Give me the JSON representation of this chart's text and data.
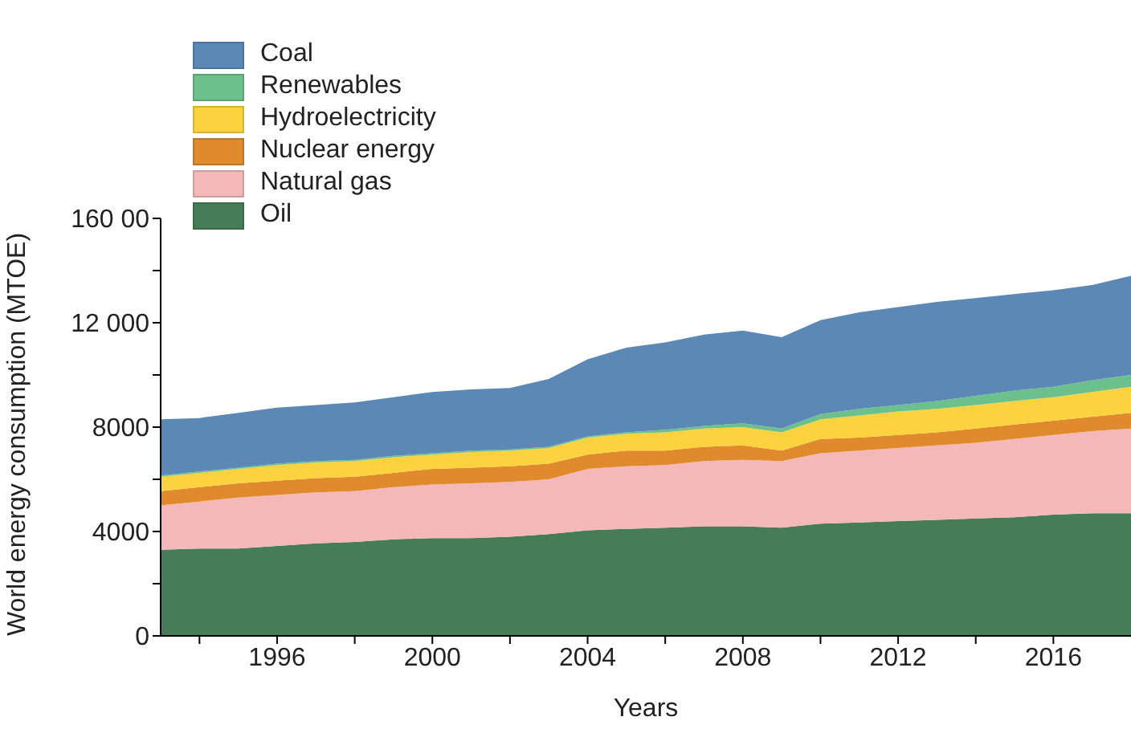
{
  "chart_data": {
    "type": "area",
    "stacked": true,
    "xlabel": "Years",
    "ylabel": "World energy consumption (MTOE)",
    "x": [
      1993,
      1994,
      1995,
      1996,
      1997,
      1998,
      1999,
      2000,
      2001,
      2002,
      2003,
      2004,
      2005,
      2006,
      2007,
      2008,
      2009,
      2010,
      2011,
      2012,
      2013,
      2014,
      2015,
      2016,
      2017,
      2018
    ],
    "series": [
      {
        "name": "Oil",
        "color": "#477c58",
        "values": [
          3300,
          3350,
          3350,
          3450,
          3550,
          3600,
          3700,
          3750,
          3750,
          3800,
          3900,
          4050,
          4100,
          4150,
          4200,
          4200,
          4150,
          4300,
          4350,
          4400,
          4450,
          4500,
          4550,
          4650,
          4700,
          4700
        ]
      },
      {
        "name": "Natural gas",
        "color": "#f4b8b8",
        "values": [
          1700,
          1800,
          1950,
          1950,
          1950,
          1950,
          2000,
          2050,
          2100,
          2100,
          2100,
          2350,
          2400,
          2400,
          2500,
          2550,
          2550,
          2700,
          2750,
          2800,
          2850,
          2900,
          3000,
          3050,
          3150,
          3250
        ]
      },
      {
        "name": "Nuclear energy",
        "color": "#e08a2e",
        "values": [
          550,
          550,
          550,
          550,
          550,
          550,
          550,
          600,
          600,
          600,
          600,
          550,
          600,
          550,
          550,
          550,
          400,
          550,
          500,
          500,
          500,
          550,
          550,
          550,
          550,
          600
        ]
      },
      {
        "name": "Hydroelectricity",
        "color": "#fcd23f",
        "values": [
          550,
          550,
          550,
          600,
          600,
          600,
          600,
          550,
          600,
          600,
          600,
          650,
          650,
          700,
          700,
          700,
          700,
          750,
          850,
          900,
          900,
          900,
          900,
          900,
          950,
          1000
        ]
      },
      {
        "name": "Renewables",
        "color": "#6cc08b",
        "values": [
          50,
          50,
          50,
          50,
          50,
          50,
          50,
          50,
          50,
          50,
          50,
          50,
          50,
          100,
          100,
          150,
          150,
          200,
          250,
          250,
          300,
          350,
          400,
          400,
          450,
          450
        ]
      },
      {
        "name": "Coal",
        "color": "#5b88b5",
        "values": [
          2150,
          2050,
          2100,
          2150,
          2150,
          2200,
          2250,
          2350,
          2350,
          2350,
          2600,
          2950,
          3250,
          3350,
          3500,
          3550,
          3500,
          3600,
          3700,
          3750,
          3800,
          3750,
          3700,
          3700,
          3650,
          3800
        ]
      }
    ],
    "xlim": [
      1993,
      2018
    ],
    "xticks": [
      {
        "value": 1994,
        "label": null
      },
      1996,
      {
        "value": 1998,
        "label": null
      },
      2000,
      {
        "value": 2002,
        "label": null
      },
      2004,
      {
        "value": 2006,
        "label": null
      },
      2008,
      {
        "value": 2010,
        "label": null
      },
      2012,
      {
        "value": 2014,
        "label": null
      },
      2016
    ],
    "ylim": [
      0,
      16000
    ],
    "yticks": [
      0,
      {
        "value": 2000,
        "label": null
      },
      4000,
      {
        "value": 6000,
        "label": null
      },
      8000,
      {
        "value": 10000,
        "label": null
      },
      {
        "value": 12000,
        "label": "12 000"
      },
      {
        "value": 14000,
        "label": null
      },
      {
        "value": 16000,
        "label": "160 00"
      }
    ],
    "grid": false,
    "legend": "top left"
  }
}
